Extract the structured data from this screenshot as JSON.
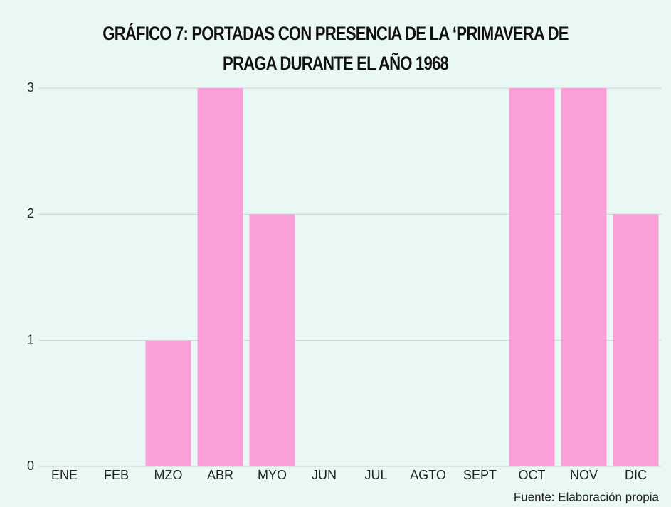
{
  "chart_data": {
    "type": "bar",
    "title": "GRÁFICO 7: PORTADAS CON PRESENCIA DE LA ‘PRIMAVERA DE PRAGA DURANTE EL AÑO 1968",
    "categories": [
      "ENE",
      "FEB",
      "MZO",
      "ABR",
      "MYO",
      "JUN",
      "JUL",
      "AGTO",
      "SEPT",
      "OCT",
      "NOV",
      "DIC"
    ],
    "values": [
      0,
      0,
      1,
      3,
      2,
      0,
      0,
      0,
      0,
      3,
      3,
      2
    ],
    "color": "#fa9fd8",
    "ylim": [
      0,
      3
    ],
    "yticks": [
      0,
      1,
      2,
      3
    ],
    "grid": true,
    "source": "Fuente: Elaboración propia"
  }
}
